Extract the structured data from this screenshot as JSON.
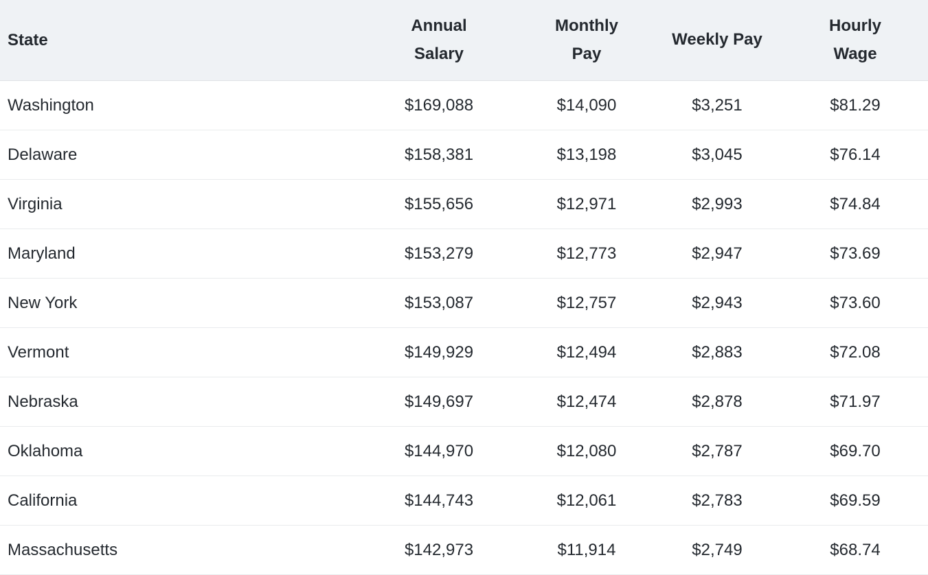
{
  "table": {
    "columns": [
      {
        "key": "state",
        "label": "State"
      },
      {
        "key": "annual",
        "label": "Annual Salary"
      },
      {
        "key": "monthly",
        "label": "Monthly Pay"
      },
      {
        "key": "weekly",
        "label": "Weekly Pay"
      },
      {
        "key": "hourly",
        "label": "Hourly Wage"
      }
    ],
    "rows": [
      {
        "state": "Washington",
        "annual": "$169,088",
        "monthly": "$14,090",
        "weekly": "$3,251",
        "hourly": "$81.29"
      },
      {
        "state": "Delaware",
        "annual": "$158,381",
        "monthly": "$13,198",
        "weekly": "$3,045",
        "hourly": "$76.14"
      },
      {
        "state": "Virginia",
        "annual": "$155,656",
        "monthly": "$12,971",
        "weekly": "$2,993",
        "hourly": "$74.84"
      },
      {
        "state": "Maryland",
        "annual": "$153,279",
        "monthly": "$12,773",
        "weekly": "$2,947",
        "hourly": "$73.69"
      },
      {
        "state": "New York",
        "annual": "$153,087",
        "monthly": "$12,757",
        "weekly": "$2,943",
        "hourly": "$73.60"
      },
      {
        "state": "Vermont",
        "annual": "$149,929",
        "monthly": "$12,494",
        "weekly": "$2,883",
        "hourly": "$72.08"
      },
      {
        "state": "Nebraska",
        "annual": "$149,697",
        "monthly": "$12,474",
        "weekly": "$2,878",
        "hourly": "$71.97"
      },
      {
        "state": "Oklahoma",
        "annual": "$144,970",
        "monthly": "$12,080",
        "weekly": "$2,787",
        "hourly": "$69.70"
      },
      {
        "state": "California",
        "annual": "$144,743",
        "monthly": "$12,061",
        "weekly": "$2,783",
        "hourly": "$69.59"
      },
      {
        "state": "Massachusetts",
        "annual": "$142,973",
        "monthly": "$11,914",
        "weekly": "$2,749",
        "hourly": "$68.74"
      }
    ]
  },
  "colors": {
    "header_bg": "#eff2f5",
    "text": "#24292f",
    "header_border": "#dfe2e5",
    "row_border": "#e9ebed",
    "row_bg": "#ffffff"
  },
  "chart_data": {
    "type": "table",
    "title": "",
    "columns": [
      "State",
      "Annual Salary",
      "Monthly Pay",
      "Weekly Pay",
      "Hourly Wage"
    ],
    "rows": [
      [
        "Washington",
        169088,
        14090,
        3251,
        81.29
      ],
      [
        "Delaware",
        158381,
        13198,
        3045,
        76.14
      ],
      [
        "Virginia",
        155656,
        12971,
        2993,
        74.84
      ],
      [
        "Maryland",
        153279,
        12773,
        2947,
        73.69
      ],
      [
        "New York",
        153087,
        12757,
        2943,
        73.6
      ],
      [
        "Vermont",
        149929,
        12494,
        2883,
        72.08
      ],
      [
        "Nebraska",
        149697,
        12474,
        2878,
        71.97
      ],
      [
        "Oklahoma",
        144970,
        12080,
        2787,
        69.7
      ],
      [
        "California",
        144743,
        12061,
        2783,
        69.59
      ],
      [
        "Massachusetts",
        142973,
        11914,
        2749,
        68.74
      ]
    ],
    "units": "USD",
    "layout": "header row shaded light blue-gray; state column left-aligned; pay columns center-aligned; horizontal row separators only"
  }
}
